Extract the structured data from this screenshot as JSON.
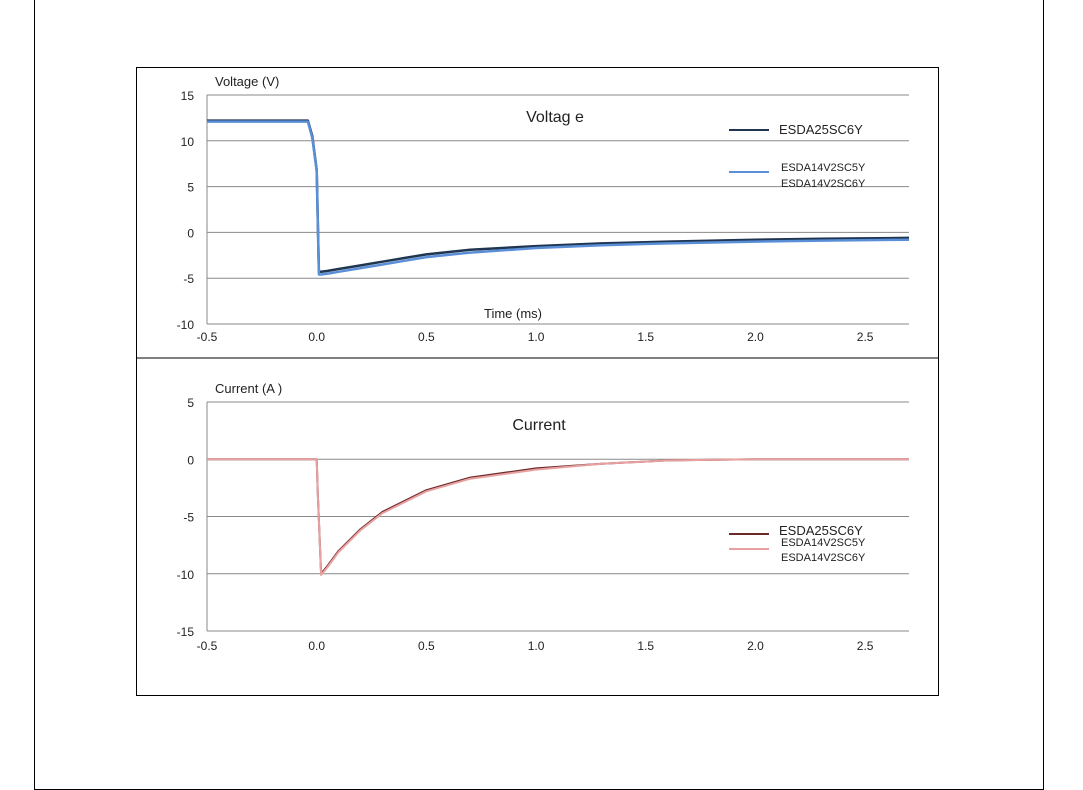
{
  "chart_data": [
    {
      "type": "line",
      "title": "Voltag e",
      "ylabel": "Voltage (V)",
      "xlabel": "Time (ms)",
      "xlim": [
        -0.5,
        2.7
      ],
      "ylim": [
        -10,
        15
      ],
      "x_ticks": [
        "-0.5",
        "0.0",
        "0.5",
        "1.0",
        "1.5",
        "2.0",
        "2.5"
      ],
      "y_ticks": [
        "15",
        "10",
        "5",
        "0",
        "-5",
        "-10"
      ],
      "grid": true,
      "legend_position": "top-right",
      "series": [
        {
          "name": "ESDA25SC6Y",
          "color": "#1f3550",
          "x": [
            -0.5,
            -0.04,
            -0.02,
            0.0,
            0.01,
            0.02,
            0.05,
            0.1,
            0.2,
            0.3,
            0.4,
            0.5,
            0.7,
            1.0,
            1.3,
            1.6,
            2.0,
            2.3,
            2.7
          ],
          "y": [
            12.2,
            12.2,
            10.5,
            6.8,
            -4.3,
            -4.3,
            -4.2,
            -4.0,
            -3.6,
            -3.2,
            -2.8,
            -2.4,
            -1.9,
            -1.5,
            -1.2,
            -1.0,
            -0.8,
            -0.7,
            -0.6
          ]
        },
        {
          "name": "ESDA14V2SC5Y\nESDA14V2SC6Y",
          "color": "#5a8fd8",
          "x": [
            -0.5,
            -0.04,
            -0.02,
            0.0,
            0.01,
            0.02,
            0.05,
            0.1,
            0.2,
            0.3,
            0.4,
            0.5,
            0.7,
            1.0,
            1.3,
            1.6,
            2.0,
            2.3,
            2.7
          ],
          "y": [
            12.1,
            12.1,
            10.3,
            6.7,
            -4.6,
            -4.6,
            -4.5,
            -4.3,
            -3.9,
            -3.5,
            -3.1,
            -2.7,
            -2.2,
            -1.7,
            -1.4,
            -1.2,
            -1.0,
            -0.9,
            -0.8
          ]
        }
      ]
    },
    {
      "type": "line",
      "title": "Current",
      "ylabel": "Current (A )",
      "xlabel": "",
      "xlim": [
        -0.5,
        2.7
      ],
      "ylim": [
        -15,
        5
      ],
      "x_ticks": [
        "-0.5",
        "0.0",
        "0.5",
        "1.0",
        "1.5",
        "2.0",
        "2.5"
      ],
      "y_ticks": [
        "5",
        "0",
        "-5",
        "-10",
        "-15"
      ],
      "grid": true,
      "legend_position": "right",
      "series": [
        {
          "name": "ESDA25SC6Y",
          "color": "#6b2a2a",
          "x": [
            -0.5,
            0.0,
            0.005,
            0.02,
            0.05,
            0.1,
            0.2,
            0.3,
            0.5,
            0.7,
            1.0,
            1.3,
            1.6,
            2.0,
            2.7
          ],
          "y": [
            0.0,
            0.0,
            -3.0,
            -10.0,
            -9.3,
            -8.0,
            -6.1,
            -4.6,
            -2.7,
            -1.6,
            -0.8,
            -0.4,
            -0.1,
            0.0,
            0.0
          ]
        },
        {
          "name": "ESDA14V2SC5Y\nESDA14V2SC6Y",
          "color": "#e8a0a0",
          "x": [
            -0.5,
            0.0,
            0.005,
            0.02,
            0.05,
            0.1,
            0.2,
            0.3,
            0.5,
            0.7,
            1.0,
            1.3,
            1.6,
            2.0,
            2.7
          ],
          "y": [
            0.0,
            0.0,
            -3.0,
            -10.1,
            -9.4,
            -8.1,
            -6.2,
            -4.7,
            -2.8,
            -1.7,
            -0.9,
            -0.4,
            -0.1,
            0.0,
            0.0
          ]
        }
      ]
    }
  ]
}
